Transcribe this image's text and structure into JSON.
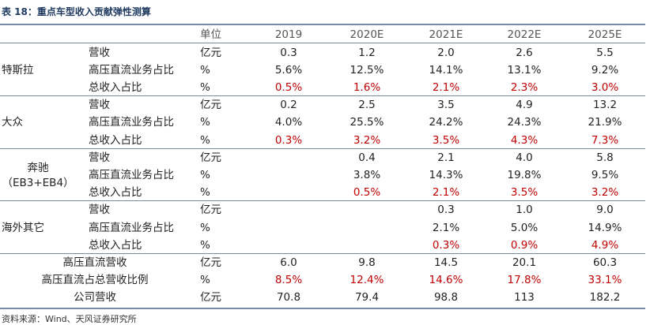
{
  "title": "表 18：重点车型收入贡献弹性测算",
  "header": {
    "unit": "单位",
    "years": [
      "2019",
      "2020E",
      "2021E",
      "2022E",
      "2025E"
    ]
  },
  "rows": [
    {
      "group": "特斯拉",
      "label": "营收",
      "unit": "亿元",
      "values": [
        "0.3",
        "1.2",
        "2.0",
        "2.6",
        "5.5"
      ],
      "red": false
    },
    {
      "group": "",
      "label": "高压直流业务占比",
      "unit": "%",
      "values": [
        "5.6%",
        "12.5%",
        "14.1%",
        "13.1%",
        "9.2%"
      ],
      "red": false
    },
    {
      "group": "",
      "label": "总收入占比",
      "unit": "%",
      "values": [
        "0.5%",
        "1.6%",
        "2.1%",
        "2.3%",
        "3.0%"
      ],
      "red": true
    },
    {
      "group": "大众",
      "label": "营收",
      "unit": "亿元",
      "values": [
        "0.2",
        "2.5",
        "3.5",
        "4.9",
        "13.2"
      ],
      "red": false
    },
    {
      "group": "",
      "label": "高压直流业务占比",
      "unit": "%",
      "values": [
        "4.0%",
        "25.5%",
        "24.2%",
        "24.3%",
        "21.9%"
      ],
      "red": false
    },
    {
      "group": "",
      "label": "总收入占比",
      "unit": "%",
      "values": [
        "0.3%",
        "3.2%",
        "3.5%",
        "4.3%",
        "7.3%"
      ],
      "red": true
    },
    {
      "group": "奔驰",
      "label": "营收",
      "unit": "亿元",
      "values": [
        "",
        "0.4",
        "2.1",
        "4.0",
        "5.8"
      ],
      "red": false
    },
    {
      "group": "",
      "label": "高压直流业务占比",
      "unit": "%",
      "values": [
        "",
        "3.8%",
        "14.3%",
        "19.8%",
        "9.5%"
      ],
      "red": false
    },
    {
      "group": "",
      "label": "总收入占比",
      "unit": "%",
      "values": [
        "",
        "0.5%",
        "2.1%",
        "3.5%",
        "3.2%"
      ],
      "red": true
    },
    {
      "group": "海外其它",
      "label": "营收",
      "unit": "亿元",
      "values": [
        "",
        "",
        "0.3",
        "1.0",
        "9.0"
      ],
      "red": false
    },
    {
      "group": "",
      "label": "高压直流业务占比",
      "unit": "%",
      "values": [
        "",
        "",
        "2.1%",
        "5.0%",
        "14.9%"
      ],
      "red": false
    },
    {
      "group": "",
      "label": "总收入占比",
      "unit": "%",
      "values": [
        "",
        "",
        "0.3%",
        "0.9%",
        "4.9%"
      ],
      "red": true
    }
  ],
  "groups": [
    {
      "name": "特斯拉"
    },
    {
      "name": "大众"
    },
    {
      "name": "奔驰",
      "sub": "（EB3+EB4）"
    },
    {
      "name": "海外其它"
    }
  ],
  "summary": [
    {
      "label": "高压直流营收",
      "unit": "亿元",
      "values": [
        "6.0",
        "9.8",
        "14.5",
        "20.1",
        "60.3"
      ],
      "red": false
    },
    {
      "label": "高压直流占总营收比例",
      "unit": "%",
      "values": [
        "8.5%",
        "12.4%",
        "14.6%",
        "17.8%",
        "33.1%"
      ],
      "red": true
    },
    {
      "label": "公司营收",
      "unit": "亿元",
      "values": [
        "70.8",
        "79.4",
        "98.8",
        "113",
        "182.2"
      ],
      "red": false
    }
  ],
  "source": "资料来源：Wind、天风证券研究所"
}
